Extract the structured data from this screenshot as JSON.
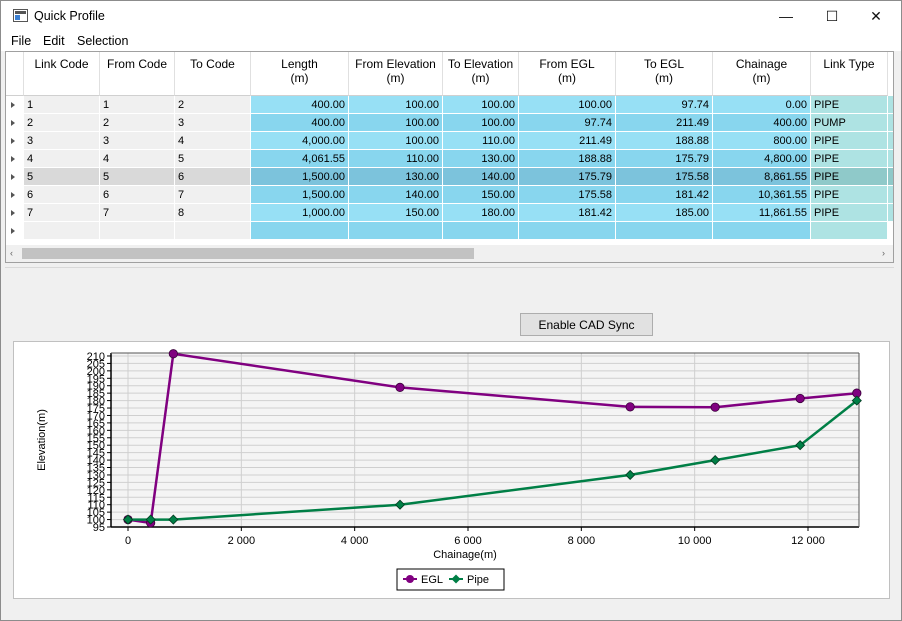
{
  "window": {
    "title": "Quick Profile",
    "minimize_glyph": "—",
    "maximize_glyph": "☐",
    "close_glyph": "✕"
  },
  "menu": [
    "File",
    "Edit",
    "Selection"
  ],
  "grid": {
    "columns": [
      {
        "label": "Link Code",
        "unit": ""
      },
      {
        "label": "From Code",
        "unit": ""
      },
      {
        "label": "To Code",
        "unit": ""
      },
      {
        "label": "Length",
        "unit": "(m)"
      },
      {
        "label": "From Elevation",
        "unit": "(m)"
      },
      {
        "label": "To Elevation",
        "unit": "(m)"
      },
      {
        "label": "From EGL",
        "unit": "(m)"
      },
      {
        "label": "To EGL",
        "unit": "(m)"
      },
      {
        "label": "Chainage",
        "unit": "(m)"
      },
      {
        "label": "Link Type",
        "unit": ""
      }
    ],
    "rows": [
      [
        "1",
        "1",
        "2",
        "400.00",
        "100.00",
        "100.00",
        "100.00",
        "97.74",
        "0.00",
        "PIPE"
      ],
      [
        "2",
        "2",
        "3",
        "400.00",
        "100.00",
        "100.00",
        "97.74",
        "211.49",
        "400.00",
        "PUMP"
      ],
      [
        "3",
        "3",
        "4",
        "4,000.00",
        "100.00",
        "110.00",
        "211.49",
        "188.88",
        "800.00",
        "PIPE"
      ],
      [
        "4",
        "4",
        "5",
        "4,061.55",
        "110.00",
        "130.00",
        "188.88",
        "175.79",
        "4,800.00",
        "PIPE"
      ],
      [
        "5",
        "5",
        "6",
        "1,500.00",
        "130.00",
        "140.00",
        "175.79",
        "175.58",
        "8,861.55",
        "PIPE"
      ],
      [
        "6",
        "6",
        "7",
        "1,500.00",
        "140.00",
        "150.00",
        "175.58",
        "181.42",
        "10,361.55",
        "PIPE"
      ],
      [
        "7",
        "7",
        "8",
        "1,000.00",
        "150.00",
        "180.00",
        "181.42",
        "185.00",
        "11,861.55",
        "PIPE"
      ]
    ],
    "selected_row": 4
  },
  "cad_button": "Enable CAD Sync",
  "chart_data": {
    "type": "line",
    "xlabel": "Chainage(m)",
    "ylabel": "Elevation(m)",
    "xlim": [
      -300,
      12900
    ],
    "ylim": [
      95,
      212
    ],
    "x_ticks": [
      0,
      2000,
      4000,
      6000,
      8000,
      10000,
      12000
    ],
    "x_tick_labels": [
      "0",
      "2 000",
      "4 000",
      "6 000",
      "8 000",
      "10 000",
      "12 000"
    ],
    "y_ticks": [
      95,
      100,
      105,
      110,
      115,
      120,
      125,
      130,
      135,
      140,
      145,
      150,
      155,
      160,
      165,
      170,
      175,
      180,
      185,
      190,
      195,
      200,
      205,
      210
    ],
    "grid": true,
    "legend_position": "bottom",
    "series": [
      {
        "name": "EGL",
        "color": "#800080",
        "marker": "circle",
        "x": [
          0,
          400,
          800,
          4800,
          8861.55,
          10361.55,
          11861.55,
          12861.55
        ],
        "y": [
          100,
          97.74,
          211.49,
          188.88,
          175.79,
          175.58,
          181.42,
          185
        ]
      },
      {
        "name": "Pipe",
        "color": "#007f46",
        "marker": "diamond",
        "x": [
          0,
          400,
          800,
          4800,
          8861.55,
          10361.55,
          11861.55,
          12861.55
        ],
        "y": [
          100,
          100,
          100,
          110,
          130,
          140,
          150,
          180
        ]
      }
    ]
  }
}
